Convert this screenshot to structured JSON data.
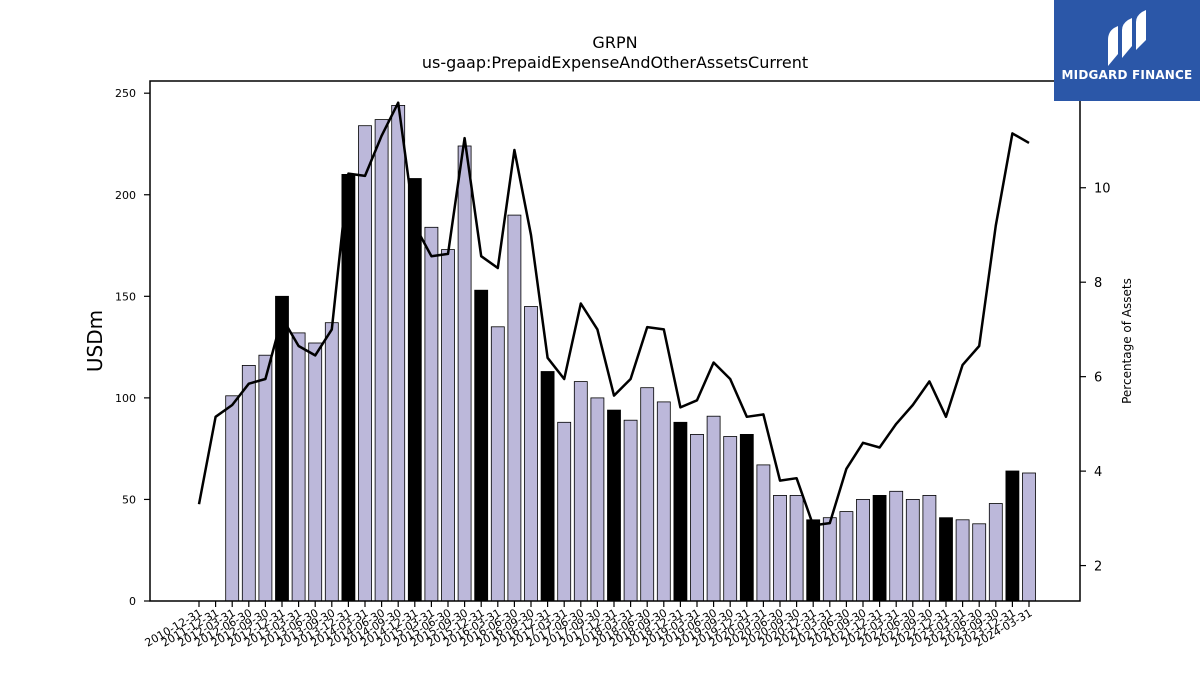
{
  "brand": {
    "name": "MIDGARD FINANCE",
    "logo_icon": "midgard-logo-icon",
    "background_color": "#2b57a8"
  },
  "colors": {
    "bar_annual": "#000000",
    "bar_quarter": "#bcb8da",
    "line": "#000000"
  },
  "chart_data": {
    "type": "bar",
    "title": "GRPN",
    "subtitle": "us-gaap:PrepaidExpenseAndOtherAssetsCurrent",
    "ylabel": "USDm",
    "y2label": "Percentage of Assets",
    "ylim": [
      0,
      256
    ],
    "y2lim": [
      1.25,
      12.26
    ],
    "yticks": [
      0,
      50,
      100,
      150,
      200,
      250
    ],
    "y2ticks": [
      2,
      4,
      6,
      8,
      10
    ],
    "categories": [
      "2010-12-31",
      "2011-12-31",
      "2012-03-31",
      "2012-06-30",
      "2012-09-30",
      "2012-12-31",
      "2013-03-31",
      "2013-06-30",
      "2013-09-30",
      "2013-12-31",
      "2014-03-31",
      "2014-06-30",
      "2014-09-30",
      "2014-12-31",
      "2015-03-31",
      "2015-06-30",
      "2015-09-30",
      "2015-12-31",
      "2016-03-31",
      "2016-06-30",
      "2016-09-30",
      "2016-12-31",
      "2017-03-31",
      "2017-06-30",
      "2017-09-30",
      "2017-12-31",
      "2018-03-31",
      "2018-06-30",
      "2018-09-30",
      "2018-12-31",
      "2019-03-31",
      "2019-06-30",
      "2019-09-30",
      "2019-12-31",
      "2020-03-31",
      "2020-06-30",
      "2020-09-30",
      "2020-12-31",
      "2021-03-31",
      "2021-06-30",
      "2021-09-30",
      "2021-12-31",
      "2022-03-31",
      "2022-06-30",
      "2022-09-30",
      "2022-12-31",
      "2023-03-31",
      "2023-06-30",
      "2023-09-30",
      "2023-12-31",
      "2024-03-31"
    ],
    "series": [
      {
        "axis": "left",
        "values": [
          null,
          null,
          101,
          116,
          121,
          150,
          132,
          127,
          137,
          210,
          234,
          237,
          244,
          208,
          184,
          173,
          224,
          153,
          135,
          190,
          145,
          113,
          88,
          108,
          100,
          94,
          89,
          105,
          98,
          88,
          82,
          91,
          81,
          82,
          67,
          52,
          52,
          40,
          41,
          44,
          50,
          52,
          54,
          50,
          52,
          41,
          40,
          38,
          48,
          64,
          63
        ]
      },
      {
        "axis": "right",
        "values": [
          3.3,
          5.15,
          5.4,
          5.85,
          5.95,
          7.25,
          6.65,
          6.45,
          7.0,
          10.3,
          10.25,
          11.1,
          11.8,
          9.2,
          8.55,
          8.6,
          11.05,
          8.55,
          8.3,
          10.8,
          9.0,
          6.4,
          5.95,
          7.55,
          7.0,
          5.6,
          5.95,
          7.05,
          7.0,
          5.35,
          5.5,
          6.3,
          5.95,
          5.15,
          5.2,
          3.8,
          3.85,
          2.85,
          2.9,
          4.05,
          4.6,
          4.5,
          5.0,
          5.4,
          5.9,
          5.15,
          6.25,
          6.65,
          9.2,
          11.15,
          10.95
        ]
      }
    ],
    "annual_categories": [
      "2012-12-31",
      "2013-12-31",
      "2014-12-31",
      "2015-12-31",
      "2016-12-31",
      "2017-12-31",
      "2018-12-31",
      "2019-12-31",
      "2020-12-31",
      "2021-12-31",
      "2022-12-31",
      "2023-12-31"
    ],
    "grid": false,
    "legend": "none"
  }
}
